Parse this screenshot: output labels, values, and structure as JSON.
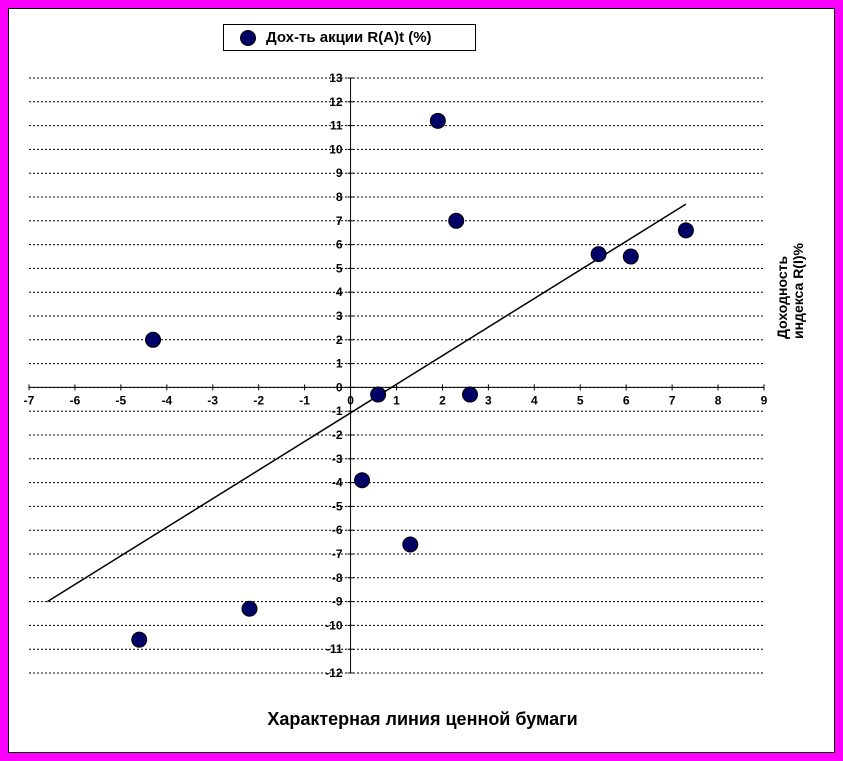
{
  "chart_data": {
    "type": "scatter",
    "title": "Характерная линия ценной бумаги",
    "xlabel": "",
    "ylabel_lines": [
      "Доходность",
      "индекса R(I)%"
    ],
    "xlim": [
      -7,
      9
    ],
    "ylim": [
      -12,
      13
    ],
    "x_ticks": [
      -7,
      -6,
      -5,
      -4,
      -3,
      -2,
      -1,
      0,
      1,
      2,
      3,
      4,
      5,
      6,
      7,
      8,
      9
    ],
    "y_ticks": [
      -12,
      -11,
      -10,
      -9,
      -8,
      -7,
      -6,
      -5,
      -4,
      -3,
      -2,
      -1,
      0,
      1,
      2,
      3,
      4,
      5,
      6,
      7,
      8,
      9,
      10,
      11,
      12,
      13
    ],
    "grid": "horizontal",
    "legend_position": "top-left",
    "series": [
      {
        "name": "Дох-ть акции R(A)t (%)",
        "color": "#000066",
        "points": [
          {
            "x": -4.3,
            "y": 2.0
          },
          {
            "x": -4.6,
            "y": -10.6
          },
          {
            "x": -2.2,
            "y": -9.3
          },
          {
            "x": 0.6,
            "y": -0.3
          },
          {
            "x": 0.25,
            "y": -3.9
          },
          {
            "x": 1.3,
            "y": -6.6
          },
          {
            "x": 1.9,
            "y": 11.2
          },
          {
            "x": 2.3,
            "y": 7.0
          },
          {
            "x": 2.6,
            "y": -0.3
          },
          {
            "x": 5.4,
            "y": 5.6
          },
          {
            "x": 6.1,
            "y": 5.5
          },
          {
            "x": 7.3,
            "y": 6.6
          }
        ]
      }
    ],
    "trendline": {
      "x1": -6.6,
      "y1": -9.0,
      "x2": 7.3,
      "y2": 7.7,
      "color": "#000000"
    }
  }
}
